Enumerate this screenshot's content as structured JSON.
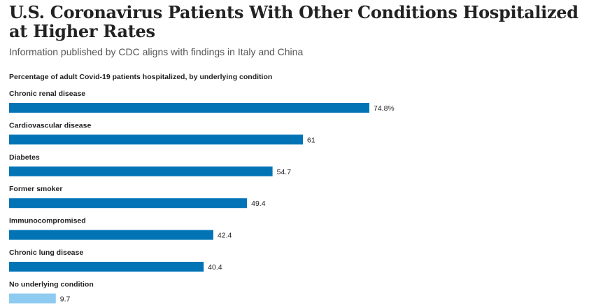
{
  "title": "U.S. Coronavirus Patients With Other Conditions Hospitalized at Higher Rates",
  "subtitle": "Information published by CDC aligns with findings in Italy and China",
  "colors": {
    "primary": "#0274b6",
    "highlight": "#8ecbf0"
  },
  "chart_data": {
    "type": "bar",
    "orientation": "horizontal",
    "title": "U.S. Coronavirus Patients With Other Conditions Hospitalized at Higher Rates",
    "subtitle": "Percentage of adult Covid-19 patients hospitalized, by underlying condition",
    "categories": [
      "Chronic renal disease",
      "Cardiovascular disease",
      "Diabetes",
      "Former smoker",
      "Immunocompromised",
      "Chronic lung disease",
      "No underlying condition"
    ],
    "values": [
      74.8,
      61,
      54.7,
      49.4,
      42.4,
      40.4,
      9.7
    ],
    "value_labels": [
      "74.8%",
      "61",
      "54.7",
      "49.4",
      "42.4",
      "40.4",
      "9.7"
    ],
    "highlight_index": 6,
    "xlim": [
      0,
      80
    ],
    "grid": false
  }
}
